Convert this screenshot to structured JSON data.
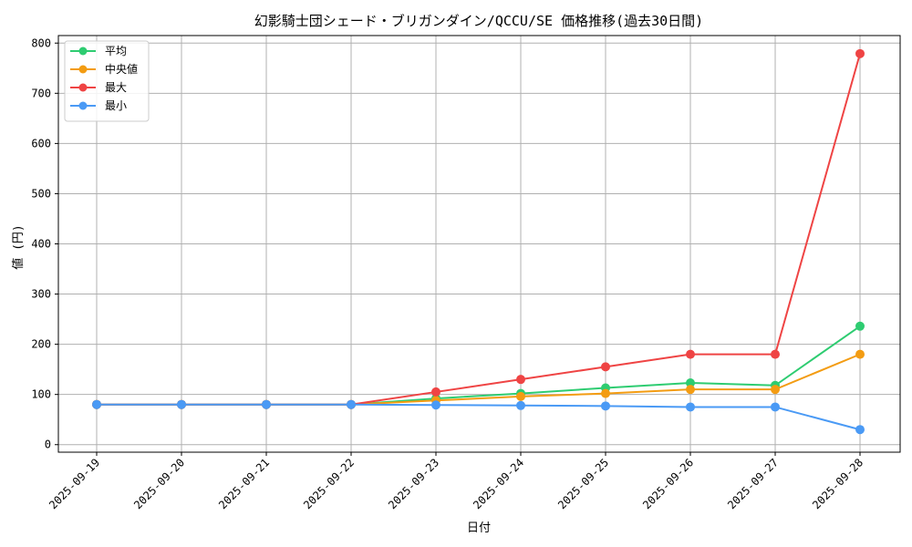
{
  "chart_data": {
    "type": "line",
    "title": "幻影騎士団シェード・ブリガンダイン/QCCU/SE 価格推移(過去30日間)",
    "xlabel": "日付",
    "ylabel": "値 (円)",
    "categories": [
      "2025-09-19",
      "2025-09-20",
      "2025-09-21",
      "2025-09-22",
      "2025-09-23",
      "2025-09-24",
      "2025-09-25",
      "2025-09-26",
      "2025-09-27",
      "2025-09-28"
    ],
    "ylim": [
      -15,
      815
    ],
    "yticks": [
      0,
      100,
      200,
      300,
      400,
      500,
      600,
      700,
      800
    ],
    "grid": true,
    "legend_position": "top-left",
    "series": [
      {
        "name": "平均",
        "color": "#2ecc71",
        "values": [
          80,
          80,
          80,
          80,
          92,
          102,
          113,
          123,
          118,
          236
        ]
      },
      {
        "name": "中央値",
        "color": "#f39c12",
        "values": [
          80,
          80,
          80,
          80,
          88,
          96,
          102,
          110,
          110,
          180
        ]
      },
      {
        "name": "最大",
        "color": "#ef4444",
        "values": [
          80,
          80,
          80,
          80,
          105,
          130,
          155,
          180,
          180,
          779
        ]
      },
      {
        "name": "最小",
        "color": "#4a9af5",
        "values": [
          80,
          80,
          80,
          80,
          79,
          78,
          77,
          75,
          75,
          30
        ]
      }
    ]
  }
}
